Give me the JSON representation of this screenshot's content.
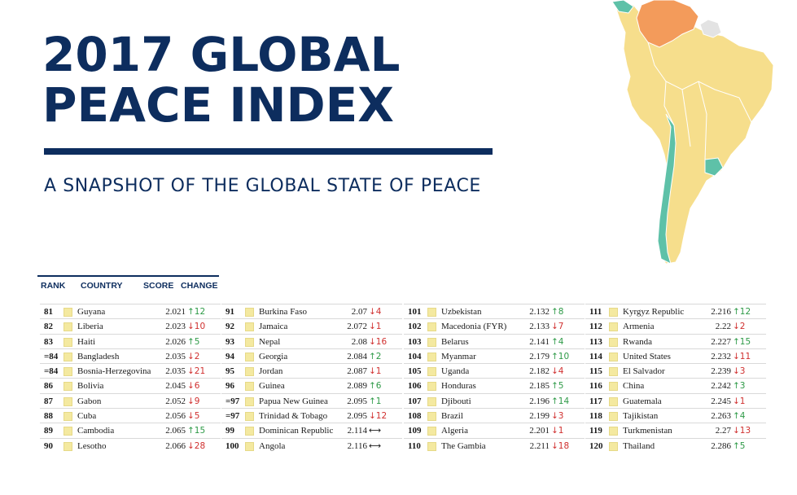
{
  "title": {
    "line1": "2017 GLOBAL",
    "line2": "PEACE INDEX"
  },
  "subtitle": "A SNAPSHOT OF THE GLOBAL STATE OF PEACE",
  "table_headers": {
    "rank": "RANK",
    "country": "COUNTRY",
    "score": "SCORE",
    "change": "CHANGE"
  },
  "colors": {
    "navy": "#0d2d5e",
    "swatch": "#f4e9a0",
    "up": "#2e9a47",
    "down": "#d0302f",
    "map_yellow": "#f6de8c",
    "map_orange": "#f39b5b",
    "map_teal": "#5ec1a8",
    "map_grey": "#e3e3e3"
  },
  "columns": [
    [
      {
        "rank": "81",
        "country": "Guyana",
        "score": "2.021",
        "dir": "up",
        "change": "12"
      },
      {
        "rank": "82",
        "country": "Liberia",
        "score": "2.023",
        "dir": "down",
        "change": "10"
      },
      {
        "rank": "83",
        "country": "Haiti",
        "score": "2.026",
        "dir": "up",
        "change": "5"
      },
      {
        "rank": "=84",
        "country": "Bangladesh",
        "score": "2.035",
        "dir": "down",
        "change": "2"
      },
      {
        "rank": "=84",
        "country": "Bosnia-Herzegovina",
        "score": "2.035",
        "dir": "down",
        "change": "21"
      },
      {
        "rank": "86",
        "country": "Bolivia",
        "score": "2.045",
        "dir": "down",
        "change": "6"
      },
      {
        "rank": "87",
        "country": "Gabon",
        "score": "2.052",
        "dir": "down",
        "change": "9"
      },
      {
        "rank": "88",
        "country": "Cuba",
        "score": "2.056",
        "dir": "down",
        "change": "5"
      },
      {
        "rank": "89",
        "country": "Cambodia",
        "score": "2.065",
        "dir": "up",
        "change": "15"
      },
      {
        "rank": "90",
        "country": "Lesotho",
        "score": "2.066",
        "dir": "down",
        "change": "28"
      }
    ],
    [
      {
        "rank": "91",
        "country": "Burkina Faso",
        "score": "2.07",
        "dir": "down",
        "change": "4"
      },
      {
        "rank": "92",
        "country": "Jamaica",
        "score": "2.072",
        "dir": "down",
        "change": "1"
      },
      {
        "rank": "93",
        "country": "Nepal",
        "score": "2.08",
        "dir": "down",
        "change": "16"
      },
      {
        "rank": "94",
        "country": "Georgia",
        "score": "2.084",
        "dir": "up",
        "change": "2"
      },
      {
        "rank": "95",
        "country": "Jordan",
        "score": "2.087",
        "dir": "down",
        "change": "1"
      },
      {
        "rank": "96",
        "country": "Guinea",
        "score": "2.089",
        "dir": "up",
        "change": "6"
      },
      {
        "rank": "=97",
        "country": "Papua New Guinea",
        "score": "2.095",
        "dir": "up",
        "change": "1"
      },
      {
        "rank": "=97",
        "country": "Trinidad & Tobago",
        "score": "2.095",
        "dir": "down",
        "change": "12"
      },
      {
        "rank": "99",
        "country": "Dominican Republic",
        "score": "2.114",
        "dir": "same",
        "change": ""
      },
      {
        "rank": "100",
        "country": "Angola",
        "score": "2.116",
        "dir": "same",
        "change": ""
      }
    ],
    [
      {
        "rank": "101",
        "country": "Uzbekistan",
        "score": "2.132",
        "dir": "up",
        "change": "8"
      },
      {
        "rank": "102",
        "country": "Macedonia (FYR)",
        "score": "2.133",
        "dir": "down",
        "change": "7"
      },
      {
        "rank": "103",
        "country": "Belarus",
        "score": "2.141",
        "dir": "up",
        "change": "4"
      },
      {
        "rank": "104",
        "country": "Myanmar",
        "score": "2.179",
        "dir": "up",
        "change": "10"
      },
      {
        "rank": "105",
        "country": "Uganda",
        "score": "2.182",
        "dir": "down",
        "change": "4"
      },
      {
        "rank": "106",
        "country": "Honduras",
        "score": "2.185",
        "dir": "up",
        "change": "5"
      },
      {
        "rank": "107",
        "country": "Djibouti",
        "score": "2.196",
        "dir": "up",
        "change": "14"
      },
      {
        "rank": "108",
        "country": "Brazil",
        "score": "2.199",
        "dir": "down",
        "change": "3"
      },
      {
        "rank": "109",
        "country": "Algeria",
        "score": "2.201",
        "dir": "down",
        "change": "1"
      },
      {
        "rank": "110",
        "country": "The Gambia",
        "score": "2.211",
        "dir": "down",
        "change": "18"
      }
    ],
    [
      {
        "rank": "111",
        "country": "Kyrgyz Republic",
        "score": "2.216",
        "dir": "up",
        "change": "12"
      },
      {
        "rank": "112",
        "country": "Armenia",
        "score": "2.22",
        "dir": "down",
        "change": "2"
      },
      {
        "rank": "113",
        "country": "Rwanda",
        "score": "2.227",
        "dir": "up",
        "change": "15"
      },
      {
        "rank": "114",
        "country": "United States",
        "score": "2.232",
        "dir": "down",
        "change": "11"
      },
      {
        "rank": "115",
        "country": "El Salvador",
        "score": "2.239",
        "dir": "down",
        "change": "3"
      },
      {
        "rank": "116",
        "country": "China",
        "score": "2.242",
        "dir": "up",
        "change": "3"
      },
      {
        "rank": "117",
        "country": "Guatemala",
        "score": "2.245",
        "dir": "down",
        "change": "1"
      },
      {
        "rank": "118",
        "country": "Tajikistan",
        "score": "2.263",
        "dir": "up",
        "change": "4"
      },
      {
        "rank": "119",
        "country": "Turkmenistan",
        "score": "2.27",
        "dir": "down",
        "change": "13"
      },
      {
        "rank": "120",
        "country": "Thailand",
        "score": "2.286",
        "dir": "up",
        "change": "5"
      }
    ]
  ]
}
